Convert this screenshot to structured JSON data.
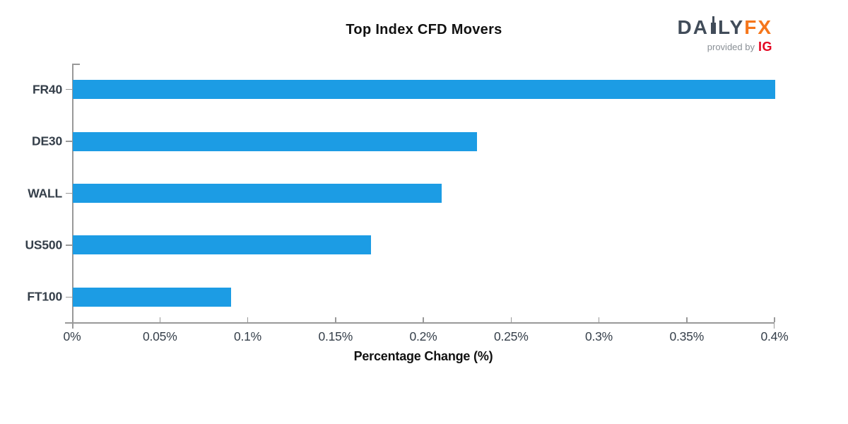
{
  "header": {
    "title": "Top Index CFD Movers",
    "logo": {
      "brand_left": "DA",
      "brand_right": "LY",
      "brand_fx": "FX",
      "provided_by": "provided by",
      "ig": "IG"
    }
  },
  "chart_data": {
    "type": "bar",
    "orientation": "horizontal",
    "title": "Top Index CFD Movers",
    "categories": [
      "FR40",
      "DE30",
      "WALL",
      "US500",
      "FT100"
    ],
    "values": [
      0.4,
      0.23,
      0.21,
      0.17,
      0.09
    ],
    "xlabel": "Percentage Change (%)",
    "xlim": [
      0,
      0.4
    ],
    "x_ticks": [
      0,
      0.05,
      0.1,
      0.15,
      0.2,
      0.25,
      0.3,
      0.35,
      0.4
    ],
    "x_tick_labels": [
      "0%",
      "0.05%",
      "0.1%",
      "0.15%",
      "0.2%",
      "0.25%",
      "0.3%",
      "0.35%",
      "0.4%"
    ],
    "grid": false,
    "legend": false,
    "colors": {
      "bar": "#1c9ce4",
      "axis": "#999999",
      "tick_label": "#353f4a"
    }
  }
}
